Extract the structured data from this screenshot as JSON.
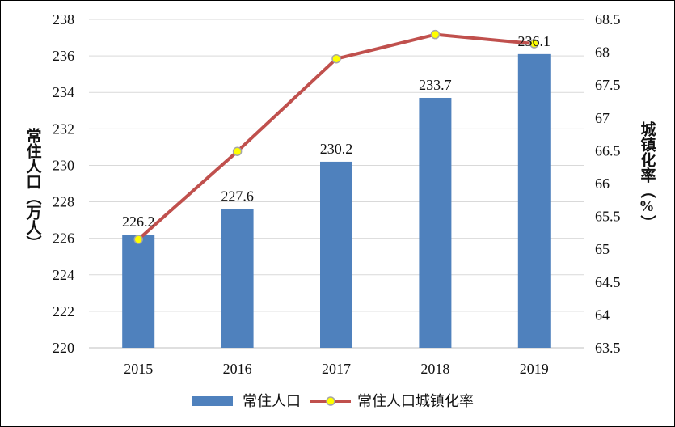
{
  "chart_data": {
    "type": "bar+line",
    "categories": [
      "2015",
      "2016",
      "2017",
      "2018",
      "2019"
    ],
    "series": [
      {
        "name": "常住人口",
        "type": "bar",
        "axis": "left",
        "values": [
          226.2,
          227.6,
          230.2,
          233.7,
          236.1
        ],
        "color": "#4F81BD"
      },
      {
        "name": "常住人口城镇化率",
        "type": "line",
        "axis": "right",
        "values": [
          65.15,
          66.49,
          67.9,
          68.27,
          68.13
        ],
        "color": "#C0504D",
        "marker_fill": "#FFFF00",
        "marker_stroke": "#A6A6A6"
      }
    ],
    "data_labels": [
      "226.2",
      "227.6",
      "230.2",
      "233.7",
      "236.1"
    ],
    "ylabel_left": "常住人口（万人）",
    "ylabel_right": "城镇化率（%）",
    "ylim_left": [
      220,
      238
    ],
    "yticks_left": [
      "220",
      "222",
      "224",
      "226",
      "228",
      "230",
      "232",
      "234",
      "236",
      "238"
    ],
    "ylim_right": [
      63.5,
      68.5
    ],
    "yticks_right": [
      "63.5",
      "64",
      "64.5",
      "65",
      "65.5",
      "66",
      "66.5",
      "67",
      "67.5",
      "68",
      "68.5"
    ],
    "grid": true,
    "legend_position": "bottom"
  }
}
